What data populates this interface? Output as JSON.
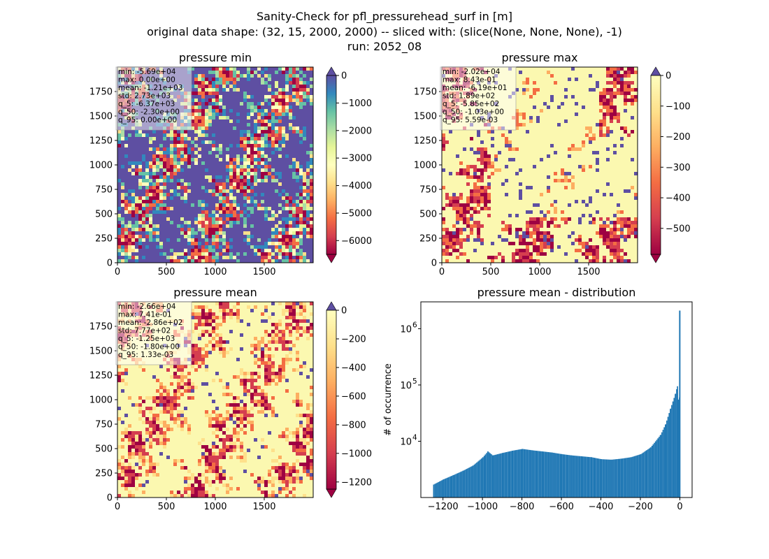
{
  "figure": {
    "title_lines": [
      "Sanity-Check for pfl_pressurehead_surf in [m]",
      "original data shape: (32, 15, 2000, 2000) -- sliced with: (slice(None, None, None), -1)",
      "run: 2052_08"
    ]
  },
  "chart_data": [
    {
      "type": "heatmap",
      "title": "pressure min",
      "x_ticks": [
        0,
        500,
        1000,
        1500
      ],
      "y_ticks": [
        0,
        250,
        500,
        750,
        1000,
        1250,
        1500,
        1750
      ],
      "xlim": [
        0,
        2000
      ],
      "ylim": [
        0,
        2000
      ],
      "colormap": "Spectral",
      "colorbar": {
        "ticks": [
          0,
          -1000,
          -2000,
          -3000,
          -4000,
          -5000,
          -6000
        ],
        "range": [
          -6500,
          0
        ],
        "extend": "both"
      },
      "stats": [
        "min: -5.69e+04",
        "max: 0.00e+00",
        "mean: -1.21e+03",
        "std: 2.73e+03",
        "q_5: -6.37e+03",
        "q_50: -2.30e+00",
        "q_95: 0.00e+00"
      ]
    },
    {
      "type": "heatmap",
      "title": "pressure max",
      "x_ticks": [
        0,
        500,
        1000,
        1500
      ],
      "y_ticks": [
        0,
        250,
        500,
        750,
        1000,
        1250,
        1500,
        1750
      ],
      "xlim": [
        0,
        2000
      ],
      "ylim": [
        0,
        2000
      ],
      "colormap": "Spectral",
      "colorbar": {
        "ticks": [
          0,
          -100,
          -200,
          -300,
          -400,
          -500
        ],
        "range": [
          -585,
          0
        ],
        "extend": "both"
      },
      "stats": [
        "min: -2.02e+04",
        "max: 8.43e-01",
        "mean: -6.19e+01",
        "std: 1.89e+02",
        "q_5: -5.85e+02",
        "q_50: -1.03e+00",
        "q_95: 5.59e-03"
      ]
    },
    {
      "type": "heatmap",
      "title": "pressure mean",
      "x_ticks": [
        0,
        500,
        1000,
        1500
      ],
      "y_ticks": [
        0,
        250,
        500,
        750,
        1000,
        1250,
        1500,
        1750
      ],
      "xlim": [
        0,
        2000
      ],
      "ylim": [
        0,
        2000
      ],
      "colormap": "Spectral",
      "colorbar": {
        "ticks": [
          0,
          -200,
          -400,
          -600,
          -800,
          -1000,
          -1200
        ],
        "range": [
          -1250,
          0
        ],
        "extend": "both"
      },
      "stats": [
        "min: -2.66e+04",
        "max: 7.41e-01",
        "mean: -2.86e+02",
        "std: 7.77e+02",
        "q_5: -1.25e+03",
        "q_50: -1.80e+00",
        "q_95: 1.33e-03"
      ]
    },
    {
      "type": "bar",
      "title": "pressure mean - distribution",
      "ylabel": "# of occurrence",
      "yscale": "log",
      "x_ticks": [
        -1200,
        -1000,
        -800,
        -600,
        -400,
        -200,
        0
      ],
      "y_tick_labels": [
        {
          "base": "10",
          "exp": "4",
          "value": 10000
        },
        {
          "base": "10",
          "exp": "5",
          "value": 100000
        },
        {
          "base": "10",
          "exp": "6",
          "value": 1000000
        }
      ],
      "xlim": [
        -1312,
        62
      ],
      "ylim": [
        1000,
        3000000
      ],
      "color": "#1f77b4",
      "x": [
        -1250,
        -1200,
        -1150,
        -1100,
        -1050,
        -1000,
        -975,
        -950,
        -900,
        -850,
        -800,
        -750,
        -700,
        -650,
        -600,
        -550,
        -500,
        -450,
        -400,
        -350,
        -300,
        -250,
        -200,
        -150,
        -100,
        -75,
        -50,
        -25,
        -15,
        -10,
        -5,
        0
      ],
      "y": [
        1700,
        2100,
        2500,
        3000,
        3700,
        5200,
        6600,
        5600,
        6200,
        6800,
        7300,
        6900,
        6600,
        6300,
        5900,
        5600,
        5400,
        5200,
        4800,
        4700,
        4900,
        5200,
        5900,
        7800,
        13000,
        20000,
        38000,
        70000,
        95000,
        55000,
        60000,
        2100000
      ]
    }
  ]
}
